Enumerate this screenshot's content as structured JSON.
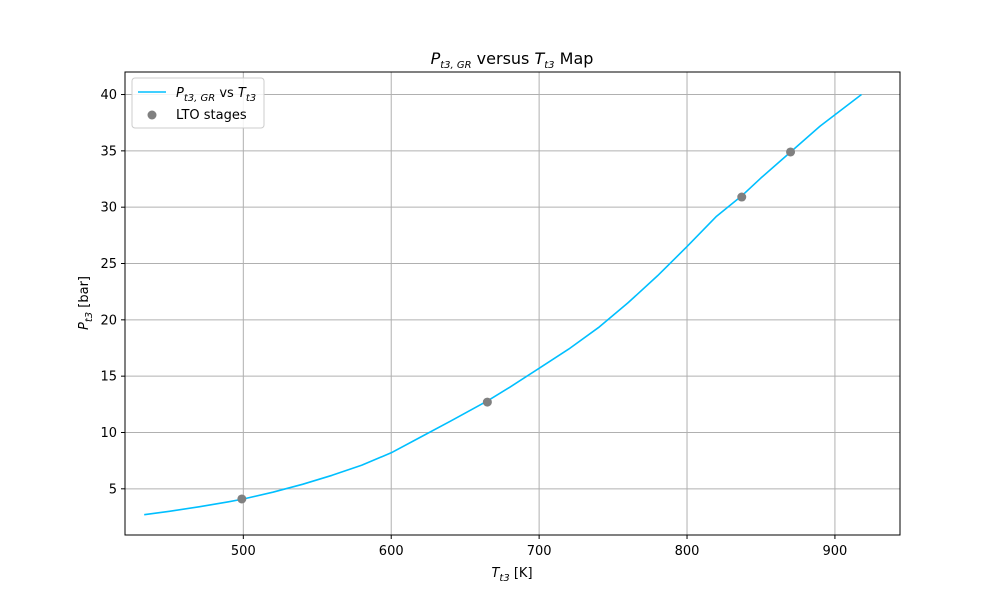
{
  "chart_data": {
    "type": "line",
    "title": {
      "main_symbol": "P",
      "main_subscript": "t3, GR",
      "middle": " versus ",
      "second_symbol": "T",
      "second_subscript": "t3",
      "suffix": " Map"
    },
    "xlabel": {
      "symbol": "T",
      "subscript": "t3",
      "unit": " [K]"
    },
    "ylabel": {
      "symbol": "P",
      "subscript": "t3",
      "unit": " [bar]"
    },
    "xlim": [
      420,
      944
    ],
    "ylim": [
      0.9,
      42
    ],
    "xticks": [
      500,
      600,
      700,
      800,
      900
    ],
    "yticks": [
      5,
      10,
      15,
      20,
      25,
      30,
      35,
      40
    ],
    "grid": true,
    "legend_position": "top-left",
    "series": [
      {
        "name": {
          "symbol": "P",
          "subscript": "t3, GR",
          "middle": " vs ",
          "symbol2": "T",
          "subscript2": "t3"
        },
        "kind": "line",
        "color": "#00bfff",
        "x": [
          433,
          450,
          470,
          490,
          500,
          520,
          540,
          560,
          580,
          600,
          620,
          640,
          665,
          680,
          700,
          720,
          740,
          760,
          780,
          800,
          820,
          837,
          850,
          870,
          890,
          918
        ],
        "y": [
          2.7,
          3.0,
          3.4,
          3.85,
          4.1,
          4.7,
          5.4,
          6.2,
          7.1,
          8.2,
          9.6,
          11.0,
          12.8,
          14.0,
          15.7,
          17.4,
          19.3,
          21.5,
          23.9,
          26.5,
          29.2,
          31.0,
          32.6,
          34.9,
          37.2,
          40.0
        ]
      },
      {
        "name": {
          "text": "LTO stages"
        },
        "kind": "scatter",
        "color": "#808080",
        "x": [
          499,
          665,
          837,
          870
        ],
        "y": [
          4.1,
          12.7,
          30.9,
          34.9
        ]
      }
    ]
  },
  "colors": {
    "line": "#00bfff",
    "points": "#808080",
    "grid": "#b0b0b0",
    "axes": "#000000"
  }
}
